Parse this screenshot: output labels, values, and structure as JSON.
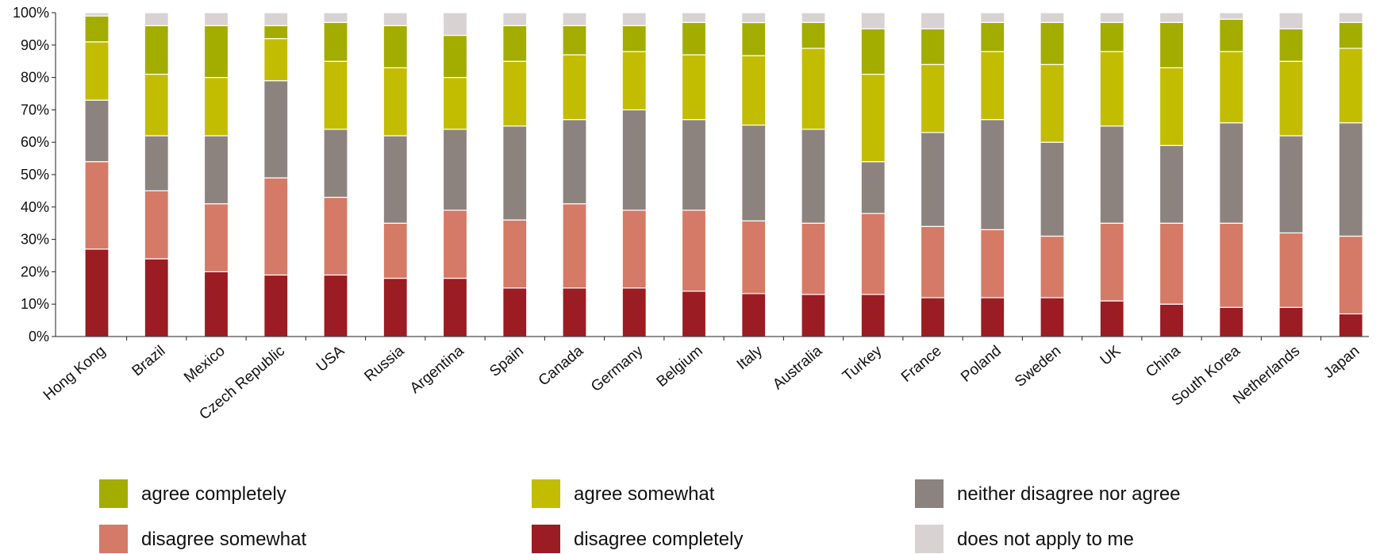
{
  "chart_data": {
    "type": "bar",
    "stacked": true,
    "percent_stacked": true,
    "title": "",
    "xlabel": "",
    "ylabel": "",
    "ylim": [
      0,
      100
    ],
    "y_ticks": [
      "0%",
      "10%",
      "20%",
      "30%",
      "40%",
      "50%",
      "60%",
      "70%",
      "80%",
      "90%",
      "100%"
    ],
    "grid": false,
    "legend_position": "bottom",
    "categories": [
      "Hong Kong",
      "Brazil",
      "Mexico",
      "Czech Republic",
      "USA",
      "Russia",
      "Argentina",
      "Spain",
      "Canada",
      "Germany",
      "Belgium",
      "Italy",
      "Australia",
      "Turkey",
      "France",
      "Poland",
      "Sweden",
      "UK",
      "China",
      "South Korea",
      "Netherlands",
      "Japan"
    ],
    "series": [
      {
        "name": "disagree completely",
        "color": "#9b1c22",
        "values": [
          27,
          24,
          20,
          19,
          19,
          18,
          18,
          15,
          15,
          15,
          14,
          13,
          13,
          13,
          12,
          12,
          12,
          11,
          10,
          9,
          9,
          7
        ]
      },
      {
        "name": "disagree somewhat",
        "color": "#d57a66",
        "values": [
          27,
          21,
          21,
          30,
          24,
          17,
          21,
          21,
          26,
          24,
          25,
          22,
          22,
          25,
          22,
          21,
          19,
          24,
          25,
          26,
          23,
          24
        ]
      },
      {
        "name": "neither disagree nor agree",
        "color": "#8c837f",
        "values": [
          19,
          17,
          21,
          30,
          21,
          27,
          25,
          29,
          26,
          31,
          28,
          29,
          29,
          16,
          29,
          34,
          29,
          30,
          24,
          31,
          30,
          35
        ]
      },
      {
        "name": "agree somewhat",
        "color": "#c2bd00",
        "values": [
          18,
          19,
          18,
          13,
          21,
          21,
          16,
          20,
          20,
          18,
          20,
          21,
          25,
          27,
          21,
          21,
          24,
          23,
          24,
          22,
          23,
          23
        ]
      },
      {
        "name": "agree completely",
        "color": "#a2ad00",
        "values": [
          8,
          15,
          16,
          4,
          12,
          13,
          13,
          11,
          9,
          8,
          10,
          10,
          8,
          14,
          11,
          9,
          13,
          9,
          14,
          10,
          10,
          8
        ]
      },
      {
        "name": "does not apply to me",
        "color": "#d8d3d2",
        "values": [
          1,
          4,
          4,
          4,
          3,
          4,
          7,
          4,
          4,
          4,
          3,
          3,
          3,
          5,
          5,
          3,
          3,
          3,
          3,
          2,
          5,
          3
        ]
      }
    ],
    "legend_order": [
      "agree completely",
      "agree somewhat",
      "neither disagree nor agree",
      "disagree somewhat",
      "disagree completely",
      "does not apply to me"
    ]
  }
}
